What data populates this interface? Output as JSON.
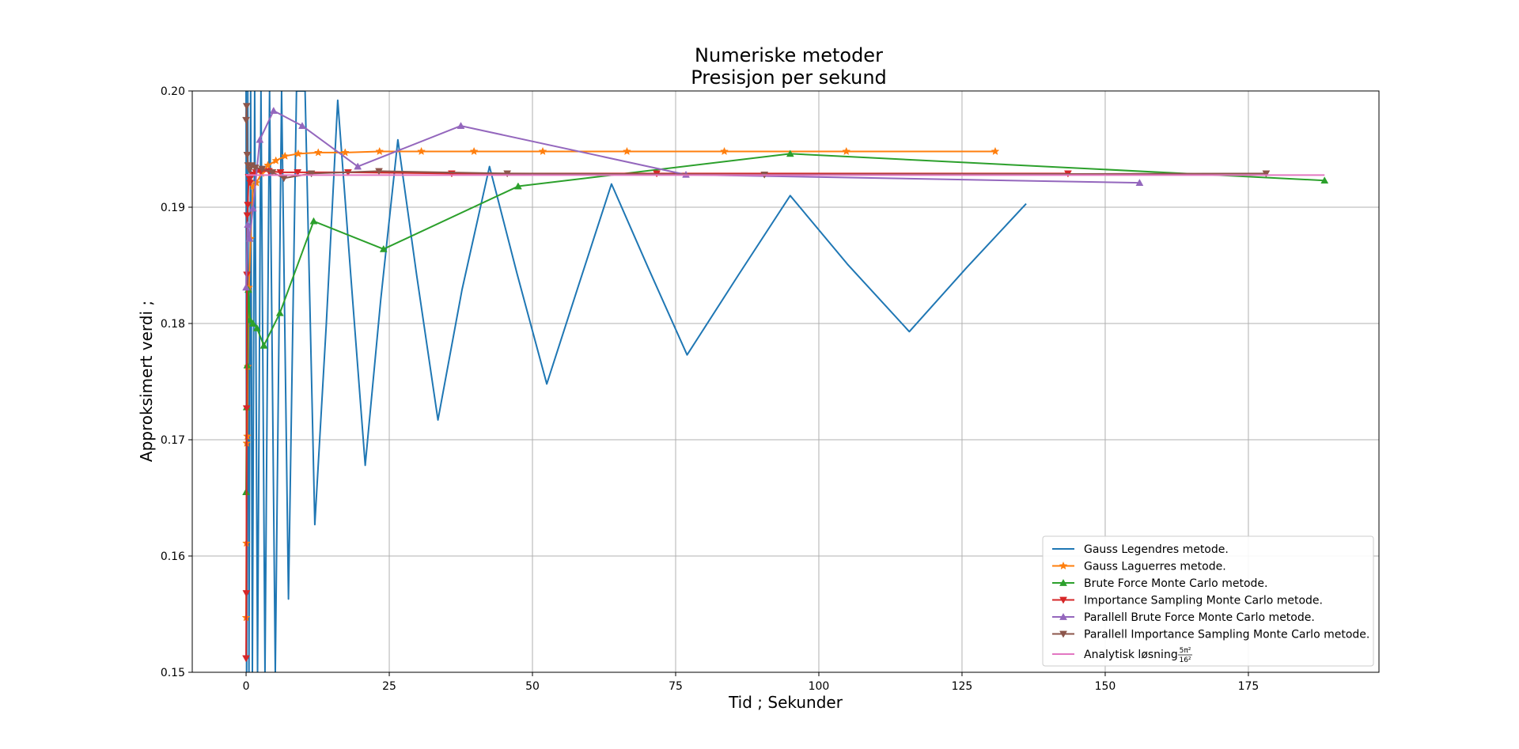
{
  "chart_data": {
    "type": "line",
    "title": [
      "Numeriske metoder",
      "Presisjon per sekund"
    ],
    "xlabel": "Tid ; Sekunder",
    "ylabel": "Approksimert verdi ;",
    "xlim": [
      -9.4,
      197.8
    ],
    "ylim": [
      0.15,
      0.2
    ],
    "grid": true,
    "legend_position": "lower-right",
    "x_ticks": [
      0,
      25,
      50,
      75,
      100,
      125,
      150,
      175
    ],
    "y_ticks": [
      0.15,
      0.16,
      0.17,
      0.18,
      0.19,
      0.2
    ],
    "x_tick_labels": [
      "0",
      "25",
      "50",
      "75",
      "100",
      "125",
      "150",
      "175"
    ],
    "y_tick_labels": [
      "0.15",
      "0.16",
      "0.17",
      "0.18",
      "0.19",
      "0.20"
    ],
    "series": [
      {
        "name": "Gauss Legendres metode.",
        "color": "#1f77b4",
        "marker": "none",
        "x": [
          0.0,
          0.1,
          0.3,
          0.5,
          0.8,
          1.1,
          1.5,
          2.0,
          2.6,
          3.3,
          4.1,
          5.1,
          6.2,
          7.4,
          8.8,
          10.3,
          12.0,
          14.0,
          16.0,
          18.3,
          20.8,
          23.5,
          26.5,
          29.8,
          33.5,
          37.7,
          42.5,
          47.3,
          52.5,
          58.0,
          63.8,
          70.2,
          77.0,
          86.0,
          95.0,
          105.0,
          115.8,
          125.8,
          136.2
        ],
        "y": [
          0.2,
          0.15,
          0.2,
          0.15,
          0.2,
          0.15,
          0.2,
          0.15,
          0.2,
          0.15,
          0.2,
          0.15,
          0.2,
          0.1563,
          0.2,
          0.2,
          0.1627,
          0.1799,
          0.1992,
          0.184,
          0.1678,
          0.182,
          0.1958,
          0.1841,
          0.1717,
          0.1829,
          0.1935,
          0.1843,
          0.1748,
          0.1832,
          0.192,
          0.1848,
          0.1773,
          0.1842,
          0.191,
          0.1851,
          0.1793,
          0.1848,
          0.1903
        ]
      },
      {
        "name": "Gauss Laguerres metode.",
        "color": "#ff7f0e",
        "marker": "star",
        "x": [
          0.0,
          0.05,
          0.1,
          0.2,
          0.3,
          0.5,
          0.8,
          1.2,
          1.8,
          2.7,
          3.8,
          5.2,
          6.8,
          9.1,
          12.6,
          17.3,
          23.3,
          30.6,
          39.8,
          51.8,
          66.5,
          83.5,
          104.8,
          130.8
        ],
        "y": [
          0.1547,
          0.1611,
          0.1697,
          0.1703,
          0.1763,
          0.1831,
          0.1873,
          0.1918,
          0.1921,
          0.1929,
          0.1936,
          0.194,
          0.1944,
          0.1946,
          0.1947,
          0.1947,
          0.1948,
          0.1948,
          0.1948,
          0.1948,
          0.1948,
          0.1948,
          0.1948,
          0.1948
        ]
      },
      {
        "name": "Brute Force Monte Carlo metode.",
        "color": "#2ca02c",
        "marker": "triangle-up",
        "x": [
          0.0,
          0.1,
          0.2,
          0.4,
          0.7,
          1.2,
          1.9,
          3.1,
          5.9,
          11.8,
          24.0,
          47.5,
          95.0,
          188.3
        ],
        "y": [
          0.1655,
          0.1728,
          0.1764,
          0.1829,
          0.1803,
          0.18,
          0.1796,
          0.1781,
          0.1809,
          0.1888,
          0.1864,
          0.1918,
          0.1946,
          0.1923
        ]
      },
      {
        "name": "Importance Sampling Monte Carlo metode.",
        "color": "#d62728",
        "marker": "triangle-down",
        "x": [
          0.0,
          0.05,
          0.1,
          0.15,
          0.2,
          0.3,
          0.45,
          0.7,
          1.1,
          1.7,
          2.6,
          4.0,
          6.0,
          9.0,
          17.8,
          35.9,
          71.7,
          143.5
        ],
        "y": [
          0.1512,
          0.1568,
          0.1727,
          0.1842,
          0.1893,
          0.1902,
          0.1926,
          0.1921,
          0.1928,
          0.193,
          0.1931,
          0.1931,
          0.193,
          0.193,
          0.193,
          0.1929,
          0.1929,
          0.1929
        ]
      },
      {
        "name": "Parallell Brute Force Monte Carlo metode.",
        "color": "#9467bd",
        "marker": "triangle-up",
        "x": [
          0.0,
          0.3,
          0.6,
          1.2,
          2.4,
          4.8,
          9.8,
          19.5,
          37.5,
          76.8,
          156.0
        ],
        "y": [
          0.1831,
          0.1885,
          0.1873,
          0.1899,
          0.1958,
          0.1983,
          0.197,
          0.1935,
          0.197,
          0.1928,
          0.1921
        ]
      },
      {
        "name": " Parallell Importance Sampling Monte Carlo metode.",
        "color": "#8c564b",
        "marker": "triangle-down",
        "x": [
          0.0,
          0.1,
          0.2,
          0.35,
          0.6,
          1.0,
          1.6,
          2.8,
          4.6,
          6.6,
          11.4,
          23.2,
          45.6,
          90.5,
          178.1
        ],
        "y": [
          0.1975,
          0.1987,
          0.1945,
          0.1936,
          0.1932,
          0.1936,
          0.1934,
          0.1933,
          0.193,
          0.1925,
          0.1929,
          0.1931,
          0.1929,
          0.1928,
          0.1929
        ]
      },
      {
        "name": "Analytisk løsning",
        "color": "#e377c2",
        "marker": "none",
        "x": [
          0.0,
          188.3
        ],
        "y": [
          0.19276571,
          0.19276571
        ]
      }
    ]
  },
  "legend": {
    "analytic_fraction_num": "5π²",
    "analytic_fraction_den": "16²"
  }
}
